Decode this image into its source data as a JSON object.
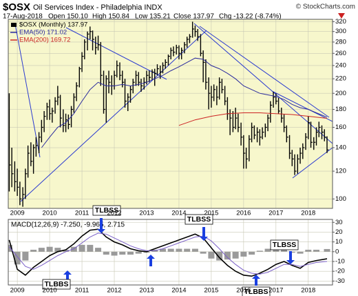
{
  "header": {
    "ticker": "$OSX",
    "name": "Oil Services Index - Philadelphia  INDX",
    "source": "© StockCharts.com",
    "quote": [
      "17-Aug-2018",
      "Open 150.10",
      "High 150.84",
      "Low 135.21",
      "Close 137.97",
      "Chg -13.22 (-8.74%)"
    ]
  },
  "chart_data": [
    {
      "type": "ohlc",
      "log": true,
      "grid": true,
      "legend": "top-left",
      "xlim": [
        2008.72,
        2018.75
      ],
      "xticks": [
        2009,
        2010,
        2011,
        2012,
        2013,
        2014,
        2015,
        2016,
        2017,
        2018
      ],
      "ylim": [
        94,
        325
      ],
      "yticks": [
        100,
        120,
        140,
        160,
        180,
        200,
        220,
        240,
        260,
        280,
        300,
        320
      ],
      "series": [
        {
          "name": "$OSX (Monthly) 137.97",
          "color": "#000000",
          "x": [
            2008.75,
            2008.83,
            2008.92,
            2009,
            2009.08,
            2009.17,
            2009.25,
            2009.33,
            2009.42,
            2009.5,
            2009.58,
            2009.67,
            2009.75,
            2009.83,
            2009.92,
            2010,
            2010.08,
            2010.17,
            2010.25,
            2010.33,
            2010.42,
            2010.5,
            2010.58,
            2010.67,
            2010.75,
            2010.83,
            2010.92,
            2011,
            2011.08,
            2011.17,
            2011.25,
            2011.33,
            2011.42,
            2011.5,
            2011.58,
            2011.67,
            2011.75,
            2011.83,
            2011.92,
            2012,
            2012.08,
            2012.17,
            2012.25,
            2012.33,
            2012.42,
            2012.5,
            2012.58,
            2012.67,
            2012.75,
            2012.83,
            2012.92,
            2013,
            2013.08,
            2013.17,
            2013.25,
            2013.33,
            2013.42,
            2013.5,
            2013.58,
            2013.67,
            2013.75,
            2013.83,
            2013.92,
            2014,
            2014.08,
            2014.17,
            2014.25,
            2014.33,
            2014.42,
            2014.5,
            2014.58,
            2014.67,
            2014.75,
            2014.83,
            2014.92,
            2015,
            2015.08,
            2015.17,
            2015.25,
            2015.33,
            2015.42,
            2015.5,
            2015.58,
            2015.67,
            2015.75,
            2015.83,
            2015.92,
            2016,
            2016.08,
            2016.17,
            2016.25,
            2016.33,
            2016.42,
            2016.5,
            2016.58,
            2016.67,
            2016.75,
            2016.83,
            2016.92,
            2017,
            2017.08,
            2017.17,
            2017.25,
            2017.33,
            2017.42,
            2017.5,
            2017.58,
            2017.67,
            2017.75,
            2017.83,
            2017.92,
            2018,
            2018.08,
            2018.17,
            2018.25,
            2018.33,
            2018.42,
            2018.5,
            2018.58
          ],
          "high": [
            200,
            140,
            128,
            122,
            112,
            108,
            122,
            142,
            145,
            143,
            150,
            155,
            168,
            178,
            188,
            192,
            182,
            195,
            210,
            198,
            180,
            175,
            174,
            184,
            200,
            215,
            238,
            262,
            285,
            300,
            310,
            302,
            290,
            292,
            280,
            232,
            225,
            232,
            225,
            232,
            248,
            245,
            232,
            220,
            200,
            210,
            220,
            232,
            230,
            220,
            222,
            232,
            232,
            234,
            235,
            242,
            240,
            245,
            250,
            258,
            270,
            272,
            275,
            274,
            270,
            280,
            290,
            295,
            320,
            312,
            305,
            295,
            265,
            250,
            222,
            210,
            212,
            210,
            222,
            220,
            210,
            195,
            180,
            178,
            182,
            175,
            165,
            152,
            140,
            152,
            165,
            162,
            160,
            158,
            160,
            164,
            174,
            190,
            202,
            200,
            194,
            182,
            174,
            162,
            152,
            138,
            134,
            134,
            140,
            144,
            154,
            172,
            166,
            150,
            160,
            166,
            162,
            158,
            150.84
          ],
          "low": [
            105,
            108,
            105,
            102,
            96,
            95,
            100,
            115,
            124,
            118,
            132,
            135,
            145,
            155,
            168,
            168,
            165,
            175,
            185,
            160,
            155,
            155,
            158,
            160,
            176,
            190,
            208,
            230,
            250,
            265,
            285,
            265,
            258,
            265,
            210,
            175,
            165,
            200,
            198,
            205,
            222,
            218,
            208,
            182,
            178,
            188,
            200,
            210,
            210,
            202,
            205,
            212,
            215,
            218,
            210,
            225,
            220,
            228,
            235,
            240,
            250,
            255,
            258,
            250,
            250,
            260,
            270,
            278,
            288,
            290,
            282,
            255,
            215,
            205,
            180,
            182,
            190,
            185,
            192,
            200,
            185,
            168,
            152,
            155,
            158,
            155,
            142,
            122,
            122,
            128,
            145,
            148,
            145,
            142,
            148,
            150,
            156,
            165,
            182,
            186,
            175,
            165,
            155,
            145,
            130,
            124,
            117,
            118,
            126,
            130,
            138,
            148,
            140,
            138,
            142,
            150,
            148,
            146,
            135.21
          ],
          "close": [
            125,
            118,
            112,
            108,
            100,
            103,
            118,
            135,
            128,
            140,
            142,
            150,
            160,
            172,
            183,
            175,
            178,
            190,
            195,
            170,
            162,
            168,
            163,
            180,
            195,
            210,
            235,
            255,
            280,
            295,
            300,
            285,
            270,
            275,
            225,
            180,
            220,
            215,
            210,
            225,
            240,
            225,
            215,
            190,
            195,
            205,
            215,
            225,
            215,
            210,
            215,
            225,
            222,
            230,
            228,
            235,
            230,
            240,
            245,
            255,
            265,
            262,
            270,
            260,
            265,
            275,
            285,
            290,
            305,
            300,
            290,
            260,
            245,
            215,
            200,
            195,
            205,
            195,
            215,
            205,
            190,
            175,
            170,
            160,
            170,
            160,
            150,
            135,
            130,
            148,
            160,
            152,
            155,
            150,
            155,
            160,
            170,
            185,
            195,
            190,
            178,
            170,
            160,
            150,
            135,
            130,
            120,
            130,
            135,
            140,
            150,
            165,
            145,
            145,
            155,
            160,
            155,
            150,
            137.97
          ]
        },
        {
          "name": "EMA(50) 171.02",
          "color": "#2b2b9e",
          "x": [
            2009.75,
            2010,
            2010.25,
            2010.5,
            2010.75,
            2011,
            2011.25,
            2011.5,
            2011.75,
            2012,
            2012.25,
            2012.5,
            2012.75,
            2013,
            2013.25,
            2013.5,
            2013.75,
            2014,
            2014.25,
            2014.5,
            2014.75,
            2015,
            2015.25,
            2015.5,
            2015.75,
            2016,
            2016.25,
            2016.5,
            2016.75,
            2017,
            2017.25,
            2017.5,
            2017.75,
            2018,
            2018.25,
            2018.58
          ],
          "values": [
            140,
            150,
            160,
            165,
            175,
            190,
            205,
            215,
            210,
            210,
            212,
            210,
            212,
            215,
            220,
            225,
            232,
            238,
            245,
            252,
            250,
            240,
            235,
            228,
            220,
            210,
            205,
            200,
            198,
            196,
            192,
            186,
            182,
            180,
            176,
            171.02
          ]
        },
        {
          "name": "EMA(200) 169.72",
          "color": "#cc2222",
          "x": [
            2014,
            2014.5,
            2015,
            2015.5,
            2016,
            2016.5,
            2017,
            2017.5,
            2018,
            2018.58
          ],
          "values": [
            162,
            168,
            172,
            175,
            176,
            176,
            175,
            174,
            172,
            169.72
          ]
        }
      ]
    },
    {
      "type": "macd",
      "grid": true,
      "title": "MACD(12,26,9) -7.250, -9.965, 2.715",
      "xlim": [
        2008.72,
        2018.75
      ],
      "xticks": [
        2009,
        2010,
        2011,
        2012,
        2013,
        2014,
        2015,
        2016,
        2017,
        2018
      ],
      "ylim": [
        -34,
        33
      ],
      "yticks": [
        30,
        20,
        10,
        0,
        -10,
        -20,
        -30
      ],
      "x": [
        2008.75,
        2009,
        2009.25,
        2009.5,
        2009.75,
        2010,
        2010.25,
        2010.5,
        2010.75,
        2011,
        2011.25,
        2011.5,
        2011.75,
        2012,
        2012.25,
        2012.5,
        2012.75,
        2013,
        2013.25,
        2013.5,
        2013.75,
        2014,
        2014.25,
        2014.5,
        2014.75,
        2015,
        2015.25,
        2015.5,
        2015.75,
        2016,
        2016.25,
        2016.5,
        2016.75,
        2017,
        2017.25,
        2017.5,
        2017.75,
        2018,
        2018.25,
        2018.58
      ],
      "series": [
        {
          "kind": "line",
          "color": "#000000",
          "values": [
            12,
            -18,
            -24,
            -16,
            -10,
            -4,
            0,
            2,
            8,
            16,
            22,
            23,
            15,
            10,
            7,
            3,
            1,
            0,
            3,
            6,
            9,
            12,
            15,
            18,
            14,
            4,
            -6,
            -14,
            -20,
            -24,
            -25,
            -22,
            -18,
            -13,
            -10,
            -14,
            -17,
            -11,
            -9,
            -7.25
          ]
        },
        {
          "kind": "line",
          "color": "#7a5fc8",
          "values": [
            5,
            -5,
            -15,
            -18,
            -14,
            -9,
            -4,
            0,
            3,
            9,
            15,
            19,
            18,
            14,
            10,
            6,
            3,
            1,
            1,
            3,
            6,
            9,
            12,
            15,
            16,
            11,
            3,
            -6,
            -13,
            -19,
            -22,
            -23,
            -21,
            -17,
            -13,
            -13,
            -15,
            -13,
            -11,
            -9.965
          ]
        },
        {
          "kind": "histogram",
          "color": "#9a9a9a",
          "values": [
            7,
            -13,
            -9,
            2,
            4,
            5,
            4,
            2,
            5,
            7,
            7,
            4,
            -3,
            -4,
            -3,
            -3,
            -2,
            -1,
            2,
            3,
            3,
            3,
            3,
            3,
            -2,
            -7,
            -9,
            -8,
            -7,
            -5,
            -3,
            1,
            3,
            4,
            3,
            -1,
            -2,
            2,
            2,
            2.715
          ]
        }
      ],
      "annotations": [
        "TLBSS",
        "TLBSS",
        "TLBBS",
        "TLBBS",
        "TLBSS"
      ]
    }
  ]
}
